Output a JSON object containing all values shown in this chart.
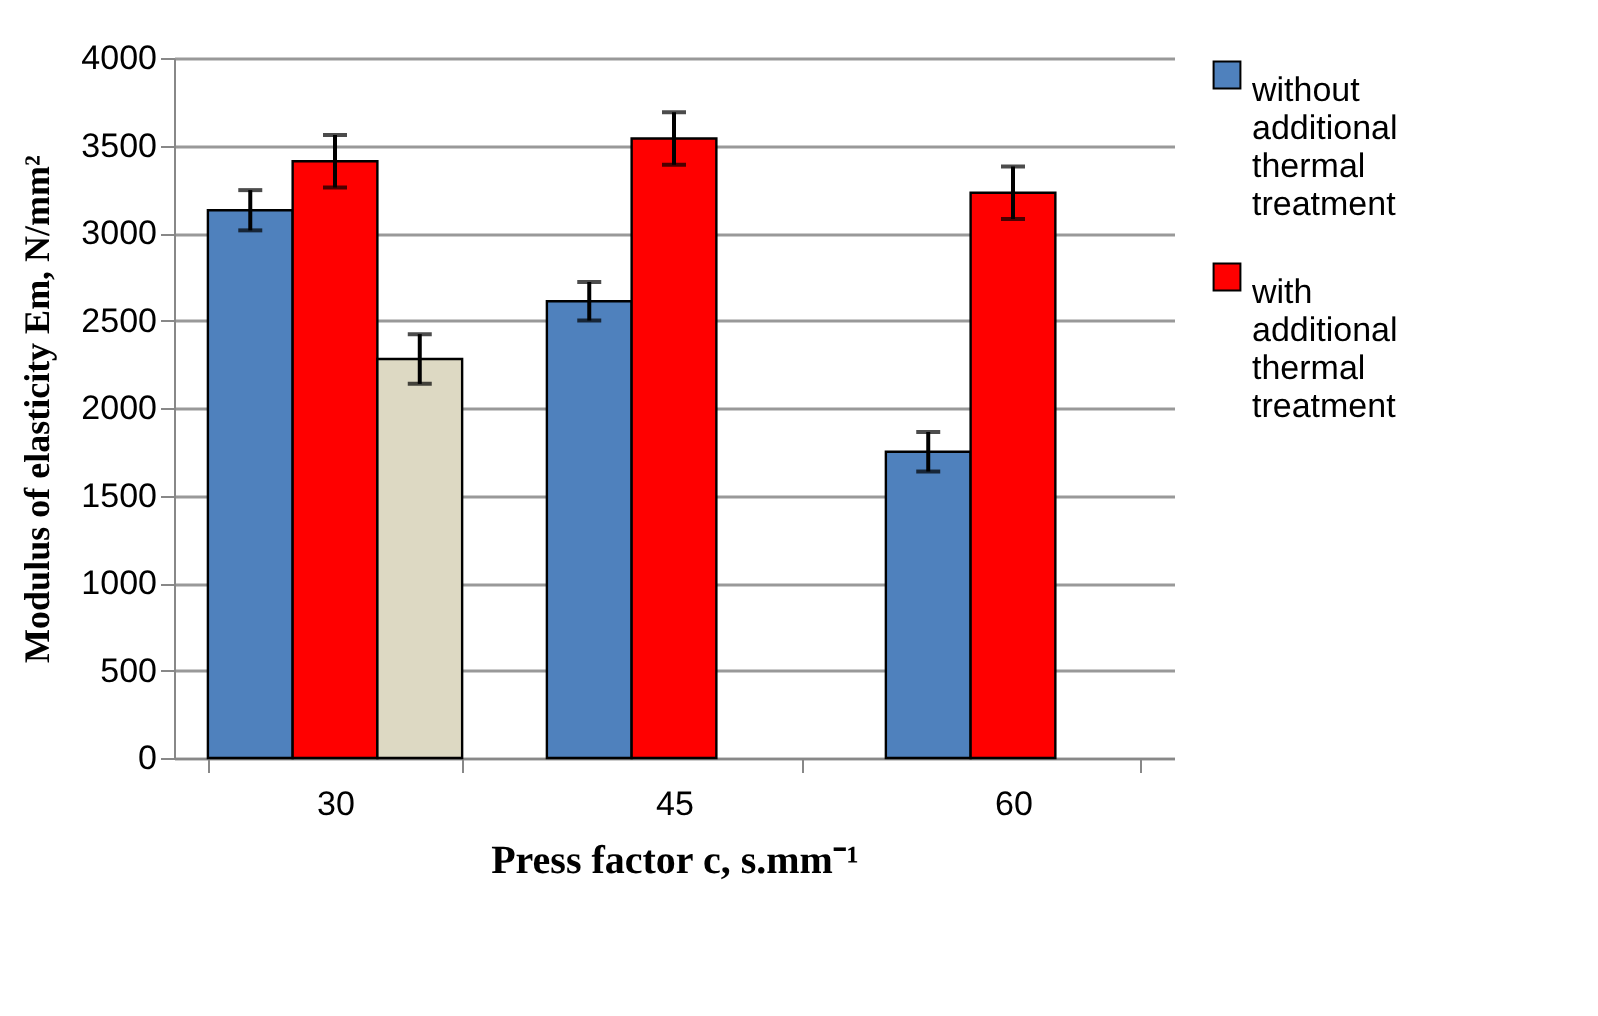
{
  "chart_data": {
    "type": "bar",
    "xlabel": "Press factor c, s.mm⁻¹",
    "ylabel": "Modulus of elasticity Em, N/mm²",
    "categories": [
      "30",
      "45",
      "60"
    ],
    "series": [
      {
        "name": "without additional thermal treatment",
        "color": "#4f81bd",
        "values": [
          3130,
          2610,
          1750
        ],
        "errors": [
          115,
          110,
          113
        ]
      },
      {
        "name": "with additional thermal treatment",
        "color": "#ff0000",
        "values": [
          3410,
          3540,
          3230
        ],
        "errors": [
          150,
          150,
          150
        ]
      },
      {
        "color": "#ddd9c3",
        "values": [
          2280,
          null,
          null
        ],
        "errors": [
          142,
          null,
          null
        ]
      }
    ],
    "ylim": [
      0,
      4000
    ],
    "yticks": [
      0,
      500,
      1000,
      1500,
      2000,
      2500,
      3000,
      3500,
      4000
    ],
    "grid": "y",
    "legend": "right"
  }
}
